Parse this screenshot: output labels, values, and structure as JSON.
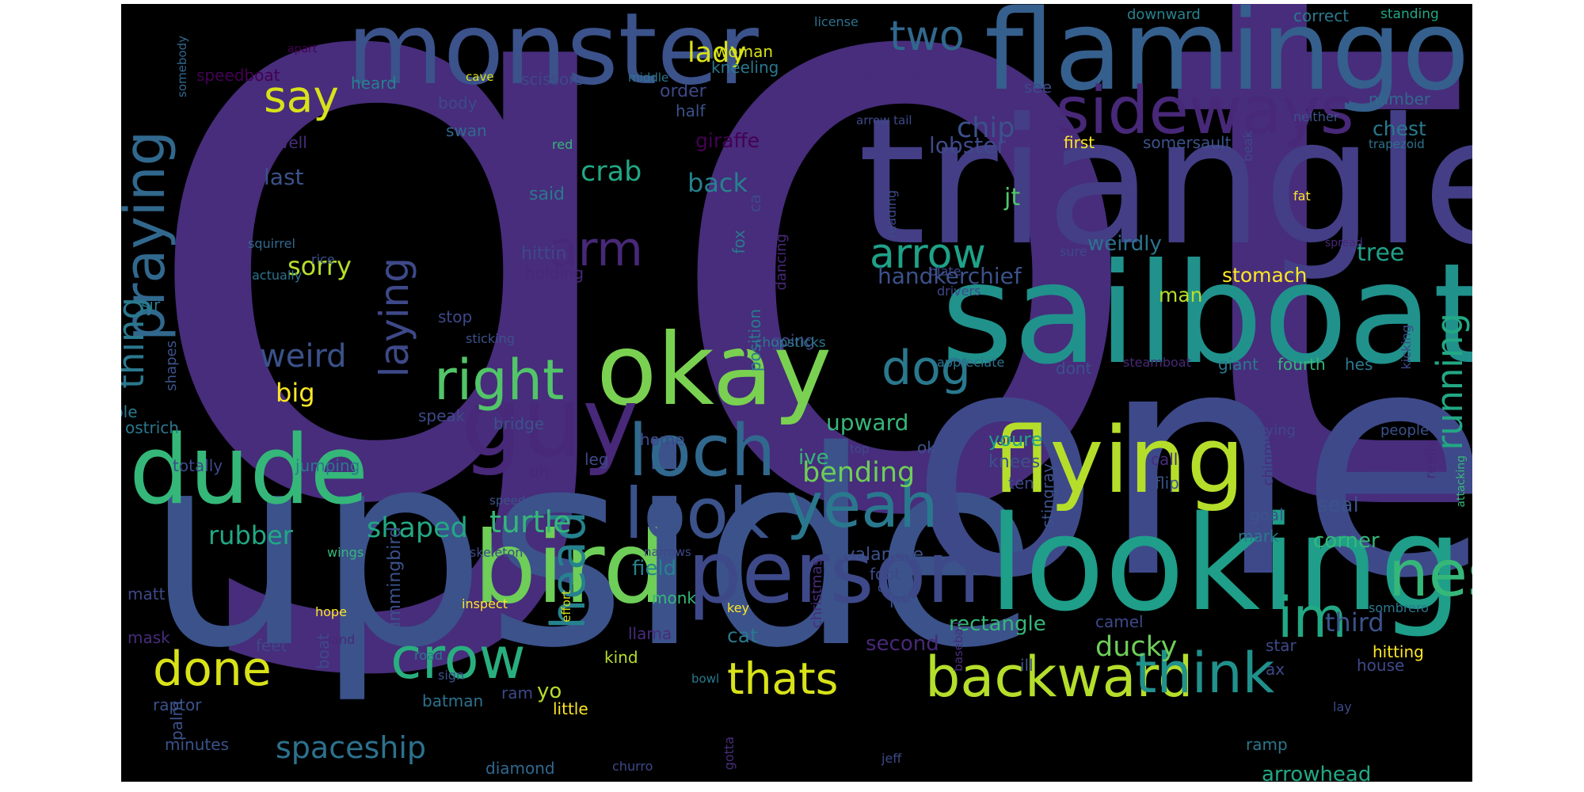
{
  "title": "",
  "colors": {
    "background": "#000000",
    "palette": [
      "#440154",
      "#482878",
      "#3e4989",
      "#31688e",
      "#26828e",
      "#1f9e89",
      "#35b779",
      "#6ece58",
      "#b5de2b",
      "#fde725"
    ]
  },
  "words": [
    {
      "text": "got",
      "color": "#472d7b"
    },
    {
      "text": "upside",
      "color": "#3b528b"
    },
    {
      "text": "one",
      "color": "#3e4989"
    },
    {
      "text": "triangle",
      "color": "#433e85"
    },
    {
      "text": "flamingo",
      "color": "#355f8d"
    },
    {
      "text": "sailboat",
      "color": "#21918c"
    },
    {
      "text": "monster",
      "color": "#3b528b"
    },
    {
      "text": "looking",
      "color": "#1f9e89"
    },
    {
      "text": "okay",
      "color": "#7ad151"
    },
    {
      "text": "flying",
      "color": "#b5de2b"
    },
    {
      "text": "bird",
      "color": "#6ece58"
    },
    {
      "text": "person",
      "color": "#3e4989"
    },
    {
      "text": "guy",
      "color": "#482878"
    },
    {
      "text": "dude",
      "color": "#35b779"
    },
    {
      "text": "loch",
      "color": "#31688e"
    },
    {
      "text": "look",
      "color": "#3b528b"
    },
    {
      "text": "sideways",
      "color": "#482878"
    },
    {
      "text": "yeah",
      "color": "#2a788e"
    },
    {
      "text": "ness",
      "color": "#35b779"
    },
    {
      "text": "im",
      "color": "#22a884"
    },
    {
      "text": "right",
      "color": "#52c569"
    },
    {
      "text": "praying",
      "color": "#31688e"
    },
    {
      "text": "crow",
      "color": "#29af7f"
    },
    {
      "text": "backward",
      "color": "#b5de2b"
    },
    {
      "text": "think",
      "color": "#21918c"
    },
    {
      "text": "say",
      "color": "#d8e219"
    },
    {
      "text": "two",
      "color": "#31688e"
    },
    {
      "text": "arm",
      "color": "#482878"
    },
    {
      "text": "arrow",
      "color": "#1fa188"
    },
    {
      "text": "dog",
      "color": "#2a788e"
    },
    {
      "text": "head",
      "color": "#26828e"
    },
    {
      "text": "bunny",
      "color": "#472d7b"
    },
    {
      "text": "done",
      "color": "#d8e219"
    },
    {
      "text": "thing",
      "color": "#2a788e"
    },
    {
      "text": "laying",
      "color": "#3e4989"
    },
    {
      "text": "thats",
      "color": "#d8e219"
    },
    {
      "text": "running",
      "color": "#22a884"
    },
    {
      "text": "weird",
      "color": "#3b528b"
    },
    {
      "text": "turtle",
      "color": "#35b779"
    },
    {
      "text": "spaceship",
      "color": "#2c728e"
    },
    {
      "text": "bending",
      "color": "#6ece58"
    },
    {
      "text": "rubber",
      "color": "#22a884"
    },
    {
      "text": "shaped",
      "color": "#22a884"
    },
    {
      "text": "lady",
      "color": "#d8e219"
    },
    {
      "text": "missing",
      "color": "#472d7b"
    },
    {
      "text": "chip",
      "color": "#3b528b"
    },
    {
      "text": "lobster",
      "color": "#3e4989"
    },
    {
      "text": "crab",
      "color": "#22a884"
    },
    {
      "text": "back",
      "color": "#26828e"
    },
    {
      "text": "last",
      "color": "#3b528b"
    },
    {
      "text": "jt",
      "color": "#52c569"
    },
    {
      "text": "sorry",
      "color": "#b5de2b"
    },
    {
      "text": "handkerchief",
      "color": "#3b528b"
    },
    {
      "text": "weirdly",
      "color": "#2c728e"
    },
    {
      "text": "tree",
      "color": "#1fa188"
    },
    {
      "text": "stomach",
      "color": "#fde725"
    },
    {
      "text": "man",
      "color": "#b5de2b"
    },
    {
      "text": "third",
      "color": "#3b528b"
    },
    {
      "text": "ducky",
      "color": "#6ece58"
    },
    {
      "text": "rectangle",
      "color": "#35b779"
    },
    {
      "text": "upward",
      "color": "#35b779"
    },
    {
      "text": "big",
      "color": "#fde725"
    },
    {
      "text": "giraffe",
      "color": "#440154"
    },
    {
      "text": "cat",
      "color": "#2a788e"
    },
    {
      "text": "second",
      "color": "#482878"
    },
    {
      "text": "corner",
      "color": "#35b779"
    },
    {
      "text": "arrowhead",
      "color": "#22a884"
    },
    {
      "text": "field",
      "color": "#26828e"
    },
    {
      "text": "speedboat",
      "color": "#440154"
    },
    {
      "text": "scissors",
      "color": "#3e4989"
    },
    {
      "text": "kneeling",
      "color": "#2a788e"
    },
    {
      "text": "woman",
      "color": "#d8e219"
    },
    {
      "text": "order",
      "color": "#3e4989"
    },
    {
      "text": "half",
      "color": "#3b528b"
    },
    {
      "text": "heard",
      "color": "#26828e"
    },
    {
      "text": "body",
      "color": "#3e4989"
    },
    {
      "text": "swan",
      "color": "#31688e"
    },
    {
      "text": "well",
      "color": "#472d7b"
    },
    {
      "text": "said",
      "color": "#2a788e"
    },
    {
      "text": "hittin",
      "color": "#3e4989"
    },
    {
      "text": "holding",
      "color": "#482878"
    },
    {
      "text": "sir",
      "color": "#2a788e"
    },
    {
      "text": "first",
      "color": "#fde725"
    },
    {
      "text": "somersault",
      "color": "#3b528b"
    },
    {
      "text": "chest",
      "color": "#2a788e"
    },
    {
      "text": "number",
      "color": "#31688e"
    },
    {
      "text": "see",
      "color": "#3e4989"
    },
    {
      "text": "downward",
      "color": "#26828e"
    },
    {
      "text": "correct",
      "color": "#2a788e"
    },
    {
      "text": "standing",
      "color": "#22a884"
    },
    {
      "text": "red",
      "color": "#35b779"
    },
    {
      "text": "cave",
      "color": "#d8e219"
    },
    {
      "text": "middle",
      "color": "#2a788e"
    },
    {
      "text": "arrow tail",
      "color": "#3e4989"
    },
    {
      "text": "license",
      "color": "#2c728e"
    },
    {
      "text": "apart",
      "color": "#440154"
    },
    {
      "text": "somebody",
      "color": "#31688e"
    },
    {
      "text": "stop",
      "color": "#3e4989"
    },
    {
      "text": "going",
      "color": "#3e4989"
    },
    {
      "text": "fox",
      "color": "#2a788e"
    },
    {
      "text": "position",
      "color": "#2a788e"
    },
    {
      "text": "ca",
      "color": "#3e4989"
    },
    {
      "text": "dancing",
      "color": "#482878"
    },
    {
      "text": "chopsticks",
      "color": "#2a788e"
    },
    {
      "text": "appreciate",
      "color": "#2c728e"
    },
    {
      "text": "dont",
      "color": "#3b528b"
    },
    {
      "text": "steamboat",
      "color": "#482878"
    },
    {
      "text": "giant",
      "color": "#2a788e"
    },
    {
      "text": "fourth",
      "color": "#35b779"
    },
    {
      "text": "hes",
      "color": "#2a788e"
    },
    {
      "text": "speak",
      "color": "#3e4989"
    },
    {
      "text": "bridge",
      "color": "#3b528b"
    },
    {
      "text": "home",
      "color": "#3e4989"
    },
    {
      "text": "leg",
      "color": "#3e4989"
    },
    {
      "text": "uh",
      "color": "#482878"
    },
    {
      "text": "ive",
      "color": "#35b779"
    },
    {
      "text": "ok",
      "color": "#3b528b"
    },
    {
      "text": "door",
      "color": "#472d7b"
    },
    {
      "text": "youre",
      "color": "#1fa188"
    },
    {
      "text": "knees",
      "color": "#3b528b"
    },
    {
      "text": "ten",
      "color": "#3e4989"
    },
    {
      "text": "call",
      "color": "#472d7b"
    },
    {
      "text": "flip",
      "color": "#3b528b"
    },
    {
      "text": "goal",
      "color": "#3b528b"
    },
    {
      "text": "seal",
      "color": "#3b528b"
    },
    {
      "text": "mark",
      "color": "#2a788e"
    },
    {
      "text": "avalanche",
      "color": "#3b528b"
    },
    {
      "text": "stingray",
      "color": "#3b528b"
    },
    {
      "text": "chipmunk",
      "color": "#472d7b"
    },
    {
      "text": "really",
      "color": "#482878"
    },
    {
      "text": "attacking",
      "color": "#35b779"
    },
    {
      "text": "trying",
      "color": "#3e4989"
    },
    {
      "text": "people",
      "color": "#3b528b"
    },
    {
      "text": "top",
      "color": "#3e4989"
    },
    {
      "text": "totally",
      "color": "#3e4989"
    },
    {
      "text": "jumping",
      "color": "#2a788e"
    },
    {
      "text": "ostrich",
      "color": "#2a788e"
    },
    {
      "text": "apple",
      "color": "#2a788e"
    },
    {
      "text": "shapes",
      "color": "#3b528b"
    },
    {
      "text": "oh",
      "color": "#440154"
    },
    {
      "text": "wings",
      "color": "#35b779"
    },
    {
      "text": "skeleton",
      "color": "#3e4989"
    },
    {
      "text": "narrows",
      "color": "#3e4989"
    },
    {
      "text": "speed",
      "color": "#3b528b"
    },
    {
      "text": "matt",
      "color": "#3e4989"
    },
    {
      "text": "hope",
      "color": "#fde725"
    },
    {
      "text": "inspect",
      "color": "#fde725"
    },
    {
      "text": "mask",
      "color": "#472d7b"
    },
    {
      "text": "monk",
      "color": "#35b779"
    },
    {
      "text": "llama",
      "color": "#472d7b"
    },
    {
      "text": "kind",
      "color": "#b5de2b"
    },
    {
      "text": "key",
      "color": "#fde725"
    },
    {
      "text": "foot",
      "color": "#3e4989"
    },
    {
      "text": "query",
      "color": "#3b528b"
    },
    {
      "text": "left",
      "color": "#3b528b"
    },
    {
      "text": "hand",
      "color": "#482878"
    },
    {
      "text": "road",
      "color": "#2a788e"
    },
    {
      "text": "sign",
      "color": "#3b528b"
    },
    {
      "text": "effort",
      "color": "#d8e219"
    },
    {
      "text": "bowl",
      "color": "#2a788e"
    },
    {
      "text": "christmas",
      "color": "#472d7b"
    },
    {
      "text": "baseball",
      "color": "#472d7b"
    },
    {
      "text": "ill",
      "color": "#3b528b"
    },
    {
      "text": "house",
      "color": "#3e4989"
    },
    {
      "text": "hitting",
      "color": "#fde725"
    },
    {
      "text": "star",
      "color": "#3e4989"
    },
    {
      "text": "ax",
      "color": "#3e4989"
    },
    {
      "text": "sombrero",
      "color": "#2a788e"
    },
    {
      "text": "lay",
      "color": "#3e4989"
    },
    {
      "text": "ramp",
      "color": "#2a788e"
    },
    {
      "text": "camel",
      "color": "#3e4989"
    },
    {
      "text": "hummingbird",
      "color": "#3b528b"
    },
    {
      "text": "boat",
      "color": "#3e4989"
    },
    {
      "text": "feet",
      "color": "#3e4989"
    },
    {
      "text": "palm",
      "color": "#3b528b"
    },
    {
      "text": "raptor",
      "color": "#3b528b"
    },
    {
      "text": "yo",
      "color": "#b5de2b"
    },
    {
      "text": "batman",
      "color": "#2c728e"
    },
    {
      "text": "ram",
      "color": "#3e4989"
    },
    {
      "text": "little",
      "color": "#fde725"
    },
    {
      "text": "minutes",
      "color": "#3b528b"
    },
    {
      "text": "diamond",
      "color": "#31688e"
    },
    {
      "text": "churro",
      "color": "#3e4989"
    },
    {
      "text": "gotta",
      "color": "#472d7b"
    },
    {
      "text": "jeff",
      "color": "#3e4989"
    },
    {
      "text": "actually",
      "color": "#2c728e"
    },
    {
      "text": "rice",
      "color": "#3b528b"
    },
    {
      "text": "squirrel",
      "color": "#31688e"
    },
    {
      "text": "sticking",
      "color": "#3b528b"
    },
    {
      "text": "reading",
      "color": "#3e4989"
    },
    {
      "text": "plate",
      "color": "#3e4989"
    },
    {
      "text": "drivers",
      "color": "#3e4989"
    },
    {
      "text": "sure",
      "color": "#3e4989"
    },
    {
      "text": "fat",
      "color": "#fde725"
    },
    {
      "text": "beak",
      "color": "#3e4989"
    },
    {
      "text": "spread",
      "color": "#482878"
    },
    {
      "text": "neither",
      "color": "#3b528b"
    },
    {
      "text": "trapezoid",
      "color": "#2c728e"
    },
    {
      "text": "kicking",
      "color": "#3e4989"
    }
  ]
}
